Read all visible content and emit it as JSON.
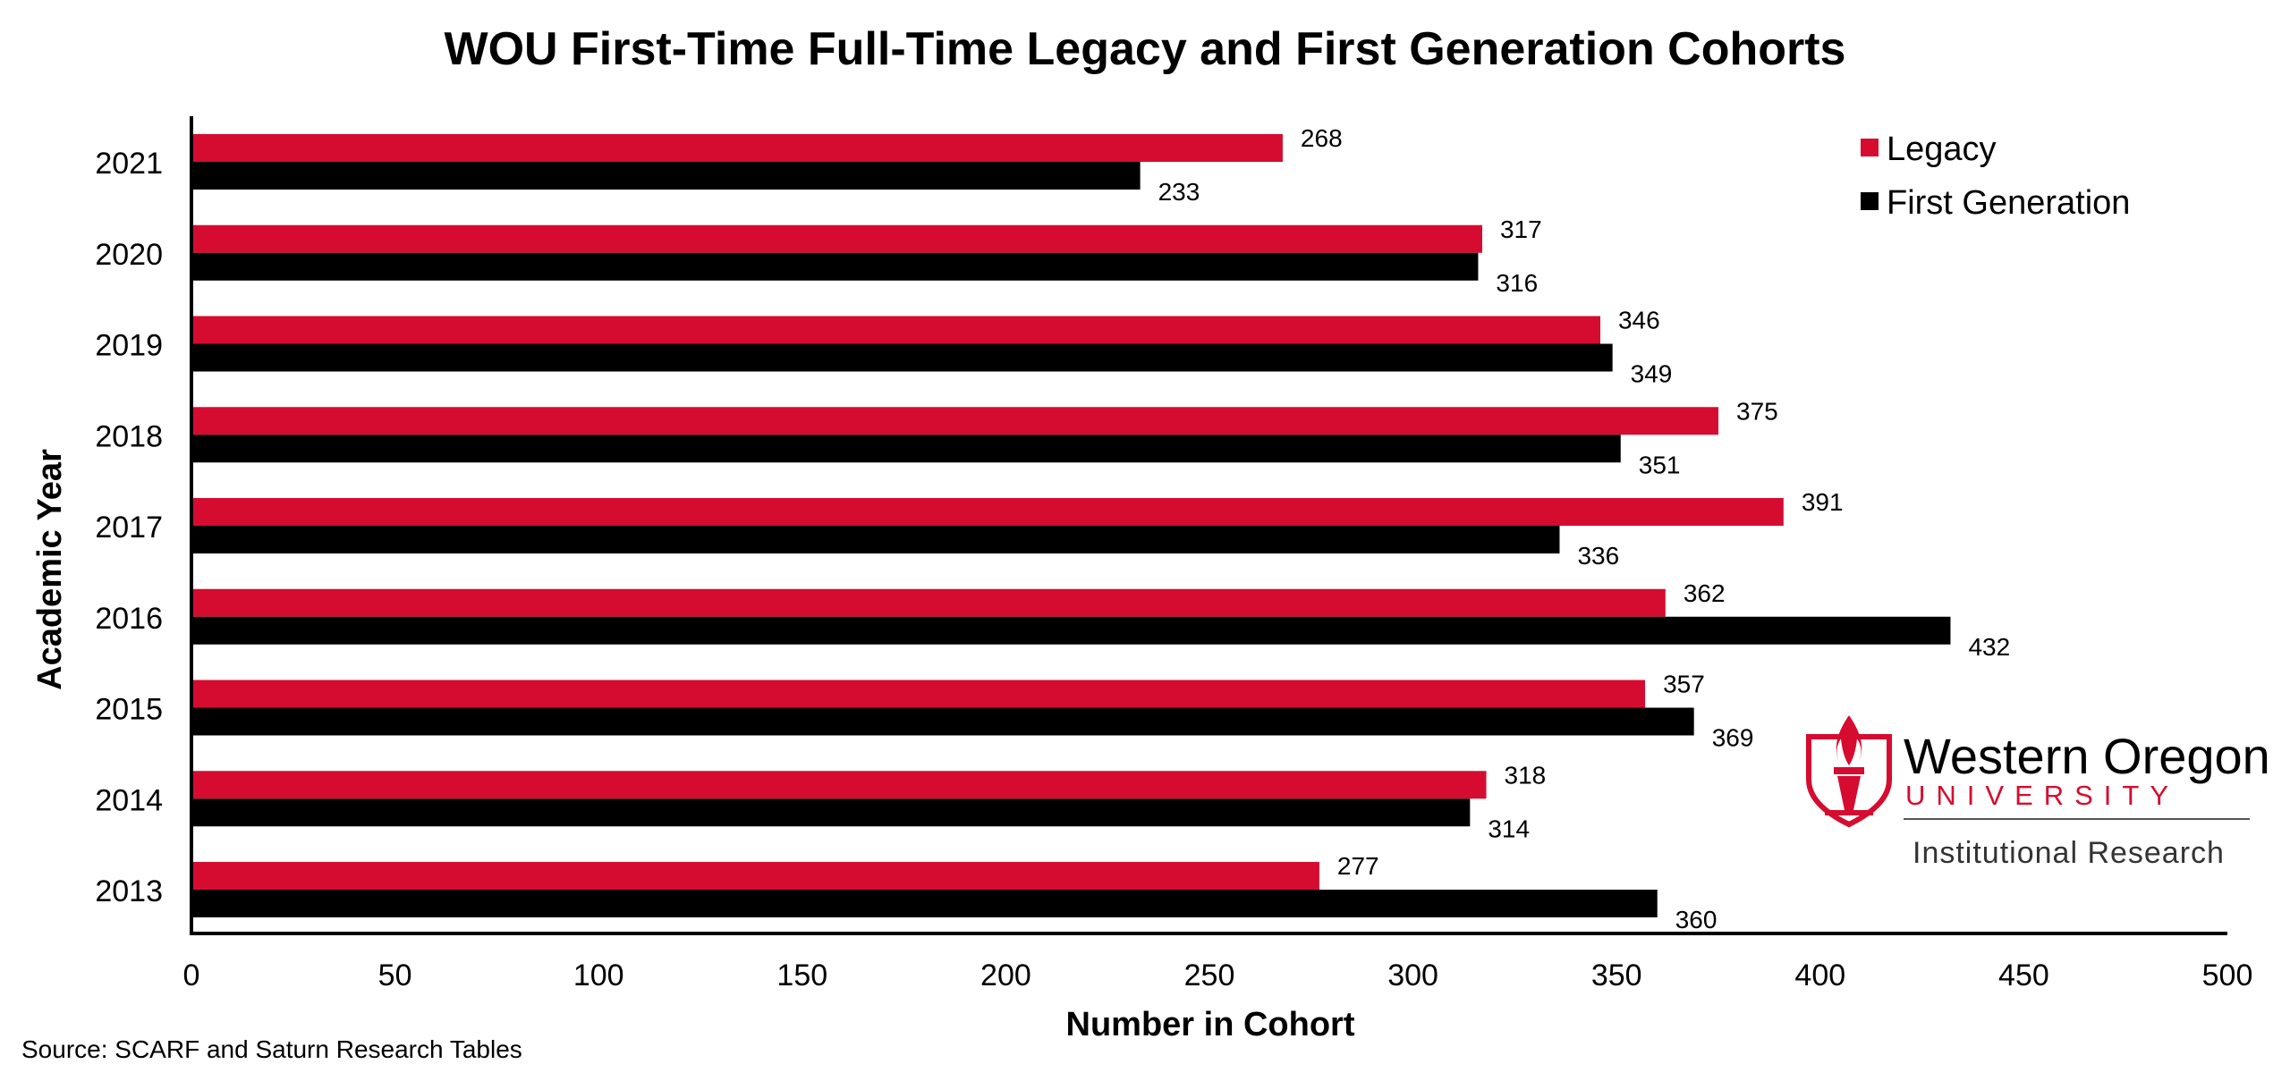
{
  "colors": {
    "legacy": "#d50c2f",
    "first_generation": "#000000",
    "logo_red": "#d50c2f"
  },
  "source": "Source: SCARF and Saturn Research Tables",
  "logo": {
    "icon": "torch-shield-icon",
    "name": "Western Oregon",
    "university": "UNIVERSITY",
    "department": "Institutional Research"
  },
  "chart_data": {
    "type": "bar",
    "orientation": "horizontal",
    "title": "WOU First-Time Full-Time Legacy and First Generation Cohorts",
    "xlabel": "Number in Cohort",
    "ylabel": "Academic Year",
    "xlim": [
      0,
      500
    ],
    "xticks": [
      "0",
      "50",
      "100",
      "150",
      "200",
      "250",
      "300",
      "350",
      "400",
      "450",
      "500"
    ],
    "categories": [
      "2021",
      "2020",
      "2019",
      "2018",
      "2017",
      "2016",
      "2015",
      "2014",
      "2013"
    ],
    "series": [
      {
        "name": "Legacy",
        "color": "#d50c2f",
        "values": [
          268,
          317,
          346,
          375,
          391,
          362,
          357,
          318,
          277
        ]
      },
      {
        "name": "First Generation",
        "color": "#000000",
        "values": [
          233,
          316,
          349,
          351,
          336,
          432,
          369,
          314,
          360
        ]
      }
    ],
    "grid": false,
    "legend": "top-right",
    "data_labels": true
  }
}
